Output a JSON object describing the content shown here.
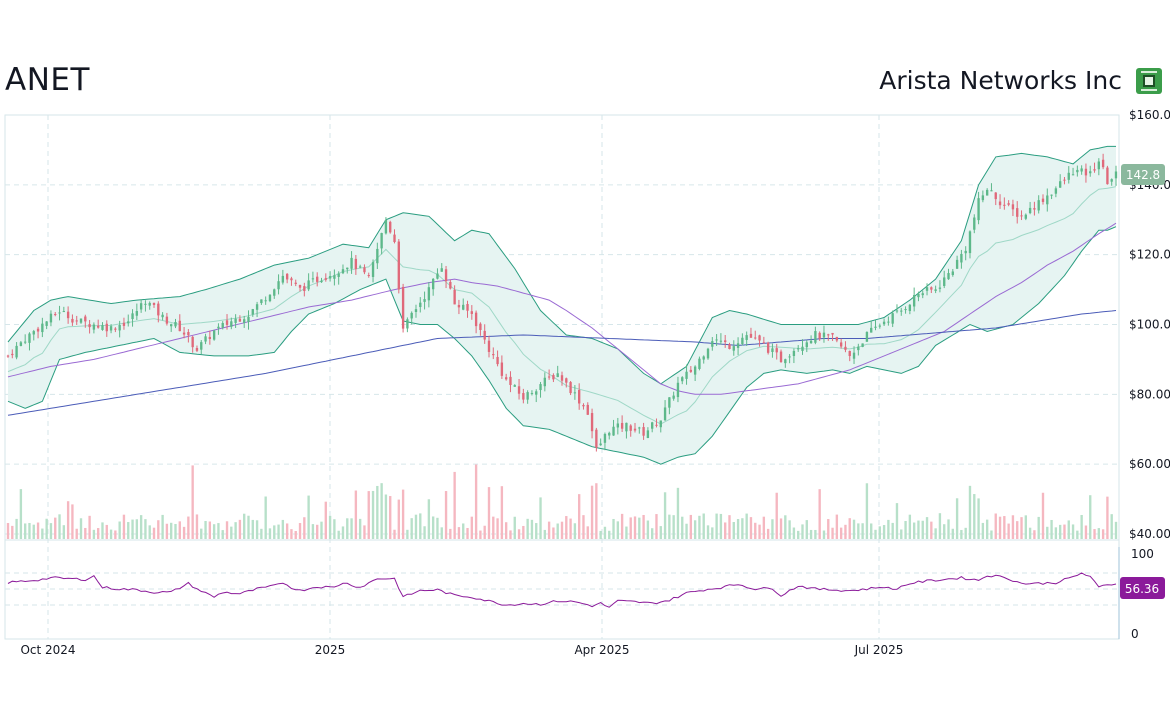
{
  "header": {
    "ticker": "ANET",
    "company": "Arista Networks Inc"
  },
  "colors": {
    "up": "#5db88a",
    "down": "#e0697a",
    "up_volume": "#b7e0c9",
    "down_volume": "#f5b7c0",
    "band_stroke": "#2a9d80",
    "band_fill": "#e6f4f2",
    "band_mid": "#9fd8c7",
    "sma50": "#9a6ad3",
    "sma200": "#4b5cb8",
    "rsi": "#8b1a9a",
    "grid": "#d6e6ea",
    "last_price_badge": "#8bb89d",
    "rsi_badge": "#8b1a9a"
  },
  "chart_data": {
    "type": "candlestick",
    "y_axis": {
      "min": 40,
      "max": 160,
      "ticks": [
        "$160.00",
        "$140.00",
        "$120.00",
        "$100.00",
        "$80.00",
        "$60.00",
        "$40.00"
      ]
    },
    "x_axis": {
      "labels": [
        "Oct 2024",
        "2025",
        "Apr 2025",
        "Jul 2025"
      ]
    },
    "last_price_label": "142.8",
    "rsi": {
      "range": [
        0,
        100
      ],
      "ticks": [
        "100",
        "0"
      ],
      "last_label": "56.36",
      "guide_levels": [
        70,
        50,
        30
      ]
    },
    "price_path": [
      [
        0,
        91
      ],
      [
        4,
        96
      ],
      [
        8,
        100
      ],
      [
        12,
        104
      ],
      [
        16,
        101
      ],
      [
        20,
        100
      ],
      [
        24,
        99
      ],
      [
        28,
        101
      ],
      [
        32,
        107
      ],
      [
        36,
        102
      ],
      [
        40,
        99
      ],
      [
        44,
        93
      ],
      [
        48,
        98
      ],
      [
        52,
        101
      ],
      [
        56,
        103
      ],
      [
        60,
        108
      ],
      [
        64,
        114
      ],
      [
        68,
        110
      ],
      [
        72,
        113
      ],
      [
        76,
        115
      ],
      [
        80,
        118
      ],
      [
        84,
        113
      ],
      [
        88,
        130
      ],
      [
        90,
        124
      ],
      [
        92,
        98
      ],
      [
        94,
        103
      ],
      [
        98,
        110
      ],
      [
        101,
        117
      ],
      [
        104,
        106
      ],
      [
        108,
        103
      ],
      [
        112,
        93
      ],
      [
        116,
        84
      ],
      [
        120,
        79
      ],
      [
        124,
        83
      ],
      [
        128,
        86
      ],
      [
        132,
        80
      ],
      [
        135,
        75
      ],
      [
        137,
        64
      ],
      [
        140,
        70
      ],
      [
        144,
        71
      ],
      [
        148,
        69
      ],
      [
        152,
        73
      ],
      [
        156,
        83
      ],
      [
        160,
        88
      ],
      [
        164,
        96
      ],
      [
        168,
        94
      ],
      [
        172,
        97
      ],
      [
        176,
        94
      ],
      [
        180,
        90
      ],
      [
        184,
        94
      ],
      [
        188,
        97
      ],
      [
        192,
        96
      ],
      [
        196,
        91
      ],
      [
        200,
        97
      ],
      [
        204,
        101
      ],
      [
        208,
        104
      ],
      [
        212,
        109
      ],
      [
        216,
        110
      ],
      [
        220,
        116
      ],
      [
        223,
        122
      ],
      [
        226,
        135
      ],
      [
        228,
        139
      ],
      [
        232,
        134
      ],
      [
        236,
        131
      ],
      [
        240,
        135
      ],
      [
        244,
        139
      ],
      [
        248,
        144
      ],
      [
        252,
        143
      ],
      [
        254,
        147
      ],
      [
        256,
        141
      ],
      [
        258,
        142.8
      ]
    ],
    "bollinger_upper": [
      [
        0,
        95
      ],
      [
        6,
        104
      ],
      [
        10,
        107
      ],
      [
        14,
        108
      ],
      [
        24,
        106
      ],
      [
        30,
        107
      ],
      [
        40,
        108
      ],
      [
        46,
        110
      ],
      [
        54,
        113
      ],
      [
        62,
        117
      ],
      [
        70,
        119
      ],
      [
        78,
        123
      ],
      [
        84,
        122
      ],
      [
        88,
        130
      ],
      [
        92,
        132
      ],
      [
        98,
        131
      ],
      [
        104,
        124
      ],
      [
        108,
        127
      ],
      [
        112,
        126
      ],
      [
        118,
        116
      ],
      [
        124,
        104
      ],
      [
        130,
        97
      ],
      [
        136,
        96
      ],
      [
        142,
        93
      ],
      [
        148,
        86
      ],
      [
        152,
        83
      ],
      [
        158,
        88
      ],
      [
        164,
        102
      ],
      [
        168,
        104
      ],
      [
        172,
        103
      ],
      [
        180,
        100
      ],
      [
        186,
        100
      ],
      [
        192,
        100
      ],
      [
        198,
        100
      ],
      [
        204,
        102
      ],
      [
        210,
        107
      ],
      [
        216,
        113
      ],
      [
        222,
        124
      ],
      [
        226,
        140
      ],
      [
        230,
        148
      ],
      [
        236,
        149
      ],
      [
        242,
        148
      ],
      [
        248,
        146
      ],
      [
        252,
        150
      ],
      [
        256,
        151
      ],
      [
        258,
        151
      ]
    ],
    "bollinger_lower": [
      [
        0,
        78
      ],
      [
        4,
        76
      ],
      [
        8,
        78
      ],
      [
        12,
        90
      ],
      [
        18,
        92
      ],
      [
        26,
        94
      ],
      [
        34,
        96
      ],
      [
        40,
        92
      ],
      [
        48,
        91
      ],
      [
        56,
        91
      ],
      [
        62,
        92
      ],
      [
        66,
        98
      ],
      [
        70,
        103
      ],
      [
        76,
        106
      ],
      [
        82,
        110
      ],
      [
        88,
        113
      ],
      [
        92,
        101
      ],
      [
        96,
        100
      ],
      [
        100,
        100
      ],
      [
        104,
        96
      ],
      [
        108,
        91
      ],
      [
        112,
        84
      ],
      [
        116,
        76
      ],
      [
        120,
        71
      ],
      [
        126,
        70
      ],
      [
        132,
        67
      ],
      [
        136,
        65
      ],
      [
        140,
        64
      ],
      [
        144,
        63
      ],
      [
        148,
        62
      ],
      [
        152,
        60
      ],
      [
        156,
        62
      ],
      [
        160,
        63
      ],
      [
        164,
        68
      ],
      [
        168,
        75
      ],
      [
        172,
        82
      ],
      [
        176,
        86
      ],
      [
        180,
        87
      ],
      [
        186,
        86
      ],
      [
        192,
        87
      ],
      [
        196,
        86
      ],
      [
        200,
        88
      ],
      [
        204,
        87
      ],
      [
        208,
        86
      ],
      [
        212,
        88
      ],
      [
        216,
        94
      ],
      [
        220,
        97
      ],
      [
        224,
        100
      ],
      [
        228,
        98
      ],
      [
        234,
        100
      ],
      [
        240,
        106
      ],
      [
        246,
        114
      ],
      [
        250,
        121
      ],
      [
        254,
        127
      ],
      [
        256,
        127
      ],
      [
        258,
        128
      ]
    ],
    "sma50": [
      [
        0,
        85
      ],
      [
        10,
        88
      ],
      [
        20,
        90
      ],
      [
        30,
        93
      ],
      [
        40,
        96
      ],
      [
        50,
        99
      ],
      [
        60,
        102
      ],
      [
        70,
        105
      ],
      [
        80,
        107
      ],
      [
        90,
        110
      ],
      [
        98,
        112
      ],
      [
        104,
        113
      ],
      [
        108,
        112
      ],
      [
        114,
        111
      ],
      [
        120,
        109
      ],
      [
        126,
        107
      ],
      [
        130,
        104
      ],
      [
        136,
        99
      ],
      [
        142,
        93
      ],
      [
        148,
        87
      ],
      [
        152,
        83
      ],
      [
        156,
        81
      ],
      [
        160,
        80
      ],
      [
        166,
        80
      ],
      [
        172,
        81
      ],
      [
        178,
        82
      ],
      [
        184,
        83
      ],
      [
        190,
        85
      ],
      [
        196,
        87
      ],
      [
        200,
        89
      ],
      [
        206,
        92
      ],
      [
        212,
        95
      ],
      [
        218,
        98
      ],
      [
        224,
        103
      ],
      [
        230,
        108
      ],
      [
        236,
        112
      ],
      [
        242,
        117
      ],
      [
        248,
        121
      ],
      [
        254,
        126
      ],
      [
        258,
        129
      ]
    ],
    "sma200": [
      [
        0,
        74
      ],
      [
        20,
        78
      ],
      [
        40,
        82
      ],
      [
        60,
        86
      ],
      [
        80,
        91
      ],
      [
        100,
        96
      ],
      [
        120,
        97
      ],
      [
        140,
        96
      ],
      [
        160,
        95
      ],
      [
        170,
        94
      ],
      [
        180,
        95
      ],
      [
        190,
        96
      ],
      [
        200,
        96
      ],
      [
        210,
        97
      ],
      [
        220,
        98
      ],
      [
        230,
        99
      ],
      [
        240,
        101
      ],
      [
        250,
        103
      ],
      [
        258,
        104
      ]
    ],
    "rsi_path": [
      [
        0,
        58
      ],
      [
        4,
        60
      ],
      [
        8,
        62
      ],
      [
        10,
        64
      ],
      [
        18,
        62
      ],
      [
        20,
        66
      ],
      [
        22,
        52
      ],
      [
        26,
        50
      ],
      [
        30,
        49
      ],
      [
        34,
        46
      ],
      [
        38,
        46
      ],
      [
        42,
        57
      ],
      [
        44,
        50
      ],
      [
        48,
        40
      ],
      [
        50,
        46
      ],
      [
        54,
        44
      ],
      [
        58,
        50
      ],
      [
        62,
        54
      ],
      [
        64,
        58
      ],
      [
        66,
        52
      ],
      [
        68,
        48
      ],
      [
        72,
        53
      ],
      [
        76,
        52
      ],
      [
        78,
        58
      ],
      [
        82,
        52
      ],
      [
        86,
        63
      ],
      [
        90,
        63
      ],
      [
        92,
        40
      ],
      [
        96,
        48
      ],
      [
        100,
        49
      ],
      [
        104,
        42
      ],
      [
        108,
        40
      ],
      [
        112,
        35
      ],
      [
        116,
        30
      ],
      [
        120,
        32
      ],
      [
        124,
        31
      ],
      [
        128,
        35
      ],
      [
        132,
        34
      ],
      [
        136,
        29
      ],
      [
        138,
        32
      ],
      [
        140,
        27
      ],
      [
        142,
        35
      ],
      [
        146,
        34
      ],
      [
        150,
        32
      ],
      [
        154,
        36
      ],
      [
        158,
        45
      ],
      [
        162,
        49
      ],
      [
        166,
        52
      ],
      [
        170,
        56
      ],
      [
        174,
        50
      ],
      [
        178,
        51
      ],
      [
        180,
        42
      ],
      [
        184,
        54
      ],
      [
        188,
        50
      ],
      [
        192,
        49
      ],
      [
        196,
        48
      ],
      [
        200,
        50
      ],
      [
        204,
        53
      ],
      [
        206,
        49
      ],
      [
        210,
        57
      ],
      [
        214,
        60
      ],
      [
        218,
        62
      ],
      [
        222,
        64
      ],
      [
        226,
        61
      ],
      [
        228,
        67
      ],
      [
        232,
        65
      ],
      [
        236,
        57
      ],
      [
        240,
        57
      ],
      [
        244,
        58
      ],
      [
        248,
        65
      ],
      [
        250,
        70
      ],
      [
        252,
        65
      ],
      [
        254,
        52
      ],
      [
        256,
        56
      ],
      [
        258,
        56
      ]
    ]
  }
}
